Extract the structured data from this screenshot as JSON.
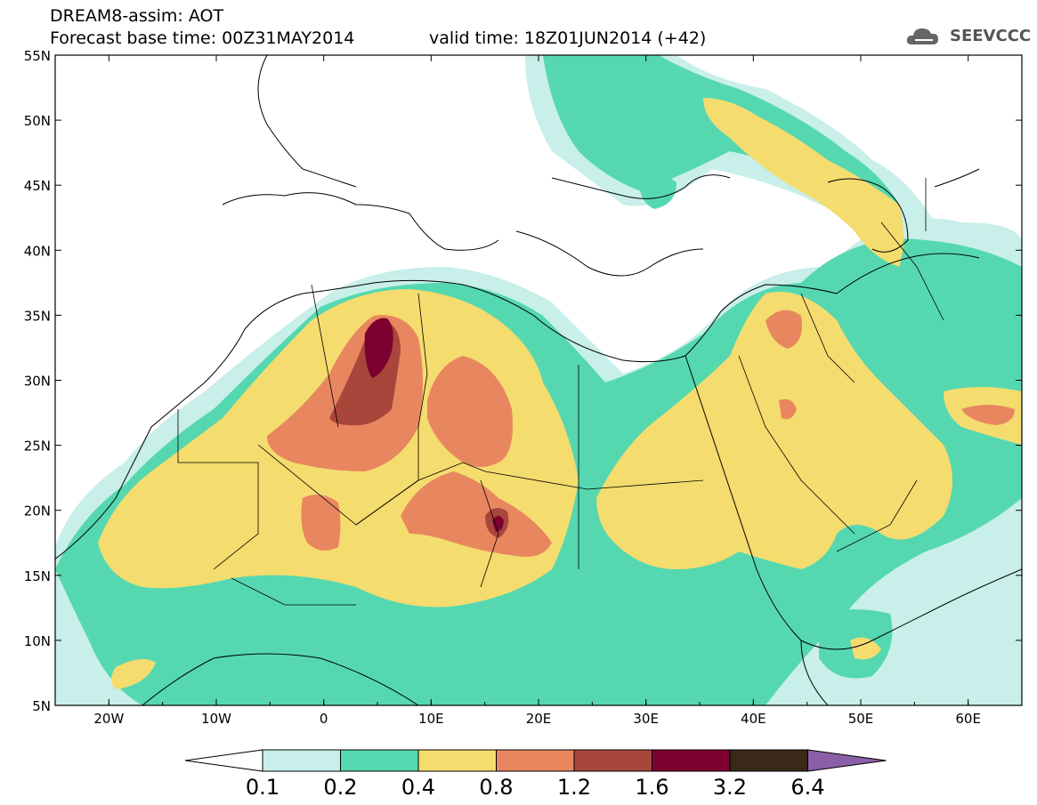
{
  "header": {
    "title": "DREAM8-assim: AOT",
    "base_time": "Forecast base time: 00Z31MAY2014",
    "valid_time": "valid time: 18Z01JUN2014 (+42)"
  },
  "logo": {
    "text": "SEEVCCC",
    "icon": "cloud-logo-icon"
  },
  "map": {
    "lat_labels": [
      "55N",
      "50N",
      "45N",
      "40N",
      "35N",
      "30N",
      "25N",
      "20N",
      "15N",
      "10N",
      "5N"
    ],
    "lon_labels": [
      "20W",
      "10W",
      "0",
      "10E",
      "20E",
      "30E",
      "40E",
      "50E",
      "60E"
    ],
    "extent": {
      "lon_min": -25,
      "lon_max": 65,
      "lat_min": 5,
      "lat_max": 55
    }
  },
  "colorbar": {
    "labels": [
      "0.1",
      "0.2",
      "0.4",
      "0.8",
      "1.2",
      "1.6",
      "3.2",
      "6.4"
    ],
    "colors": [
      "#ffffff",
      "#c8efe9",
      "#55d8b0",
      "#f5dc6e",
      "#e8875f",
      "#a8463c",
      "#7d0030",
      "#3a2818",
      "#8a5fa8"
    ]
  }
}
